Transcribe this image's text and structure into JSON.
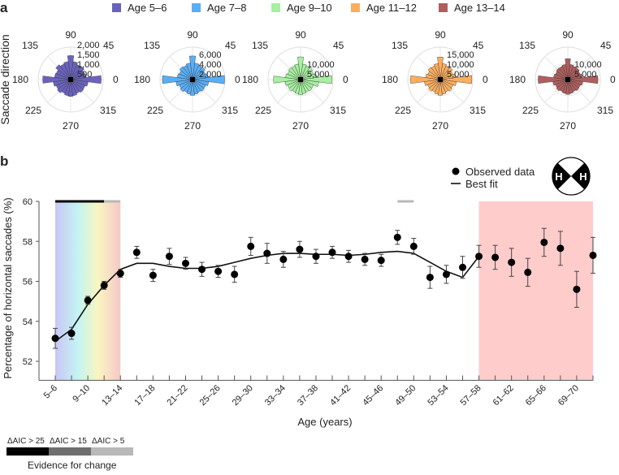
{
  "panel_a": {
    "letter": "a",
    "ylabel": "Saccade direction",
    "angle_labels": [
      "0",
      "45",
      "90",
      "135",
      "180",
      "225",
      "270",
      "315"
    ],
    "bin_width_deg": 15,
    "legend": [
      {
        "label": "Age 5–6",
        "color": "#6a63bd"
      },
      {
        "label": "Age 7–8",
        "color": "#5aaef6"
      },
      {
        "label": "Age 9–10",
        "color": "#a6f0a0"
      },
      {
        "label": "Age 11–12",
        "color": "#fcae60"
      },
      {
        "label": "Age 13–14",
        "color": "#b05e5e"
      }
    ],
    "chart_data": [
      {
        "type": "polar-bar",
        "group": "Age 5–6",
        "rmax": 2500,
        "radial_ticks": [
          "500",
          "1,000",
          "1,500",
          "2,000"
        ],
        "radial_tick_values": [
          500,
          1000,
          1500,
          2000
        ],
        "counts": [
          2350,
          1200,
          1150,
          1300,
          1250,
          1400,
          1850,
          1400,
          1300,
          1450,
          1200,
          1250,
          2150,
          1350,
          1200,
          1300,
          1150,
          1250,
          1300,
          1250,
          1150,
          1250,
          1200,
          1350
        ]
      },
      {
        "type": "polar-bar",
        "group": "Age 7–8",
        "rmax": 7000,
        "radial_ticks": [
          "2,000",
          "4,000",
          "6,000"
        ],
        "radial_tick_values": [
          2000,
          4000,
          6000
        ],
        "counts": [
          6900,
          3300,
          3000,
          3400,
          3300,
          3600,
          5100,
          3600,
          3300,
          3500,
          3100,
          3300,
          6500,
          3600,
          3100,
          3300,
          3000,
          3200,
          3400,
          3200,
          3000,
          3200,
          3100,
          3500
        ]
      },
      {
        "type": "polar-bar",
        "group": "Age 9–10",
        "rmax": 15000,
        "radial_ticks": [
          "5,000",
          "10,000"
        ],
        "radial_tick_values": [
          5000,
          10000
        ],
        "counts": [
          14500,
          7500,
          6500,
          7000,
          6800,
          7200,
          10500,
          7200,
          6800,
          7000,
          6500,
          7000,
          12500,
          7200,
          6500,
          6800,
          6300,
          6700,
          7000,
          6700,
          6300,
          6700,
          6500,
          8500
        ]
      },
      {
        "type": "polar-bar",
        "group": "Age 11–12",
        "rmax": 18000,
        "radial_ticks": [
          "5,000",
          "10,000",
          "15,000"
        ],
        "radial_tick_values": [
          5000,
          10000,
          15000
        ],
        "counts": [
          17500,
          8500,
          7500,
          8500,
          8200,
          9000,
          12500,
          9000,
          8200,
          8500,
          7500,
          8200,
          16500,
          8800,
          7600,
          8200,
          7500,
          8200,
          8700,
          8200,
          7500,
          8200,
          7700,
          9000
        ]
      },
      {
        "type": "polar-bar",
        "group": "Age 13–14",
        "rmax": 14000,
        "radial_ticks": [
          "5,000",
          "10,000"
        ],
        "radial_tick_values": [
          5000,
          10000
        ],
        "counts": [
          13000,
          6300,
          5800,
          6300,
          6200,
          6600,
          9000,
          6600,
          6200,
          6300,
          5800,
          6200,
          12800,
          6500,
          5800,
          6200,
          5700,
          6100,
          6400,
          6100,
          5700,
          6100,
          5900,
          6500
        ]
      }
    ]
  },
  "panel_b": {
    "letter": "b",
    "legend": {
      "observed": "Observed data",
      "fit": "Best fit"
    },
    "icon_letter": "H",
    "evidence_legend": {
      "labels": [
        "ΔAIC > 25",
        "ΔAIC > 15",
        "ΔAIC > 5"
      ],
      "colors": [
        "#000000",
        "#6e6e6e",
        "#b8b8b8"
      ],
      "title": "Evidence for change"
    },
    "chart_data": {
      "type": "line",
      "title": "",
      "xlabel": "Age (years)",
      "ylabel": "Percentage of horizontal saccades (%)",
      "ylim": [
        51.05,
        60
      ],
      "yticks": [
        52,
        54,
        56,
        58,
        60
      ],
      "categories": [
        "5–6",
        "7–8",
        "9–10",
        "11–12",
        "13–14",
        "15–16",
        "17–18",
        "19–20",
        "21–22",
        "23–24",
        "25–26",
        "27–28",
        "29–30",
        "31–32",
        "33–34",
        "35–36",
        "37–38",
        "39–40",
        "41–42",
        "43–44",
        "45–46",
        "47–48",
        "49–50",
        "51–52",
        "53–54",
        "55–56",
        "57–58",
        "59–60",
        "61–62",
        "63–64",
        "65–66",
        "67–68",
        "69–70",
        "71–72"
      ],
      "tick_labels": [
        "5–6",
        "9–10",
        "13–14",
        "17–18",
        "21–22",
        "25–26",
        "29–30",
        "33–34",
        "37–38",
        "41–42",
        "45–46",
        "49–50",
        "53–54",
        "57–58",
        "61–62",
        "65–66",
        "69–70"
      ],
      "observed": [
        53.15,
        53.4,
        55.05,
        55.8,
        56.4,
        57.45,
        56.3,
        57.25,
        56.9,
        56.6,
        56.5,
        56.35,
        57.75,
        57.4,
        57.1,
        57.6,
        57.25,
        57.45,
        57.25,
        57.1,
        57.05,
        58.2,
        57.75,
        56.2,
        56.35,
        56.7,
        57.25,
        57.2,
        56.95,
        56.45,
        57.95,
        57.65,
        55.6,
        57.3
      ],
      "error": [
        0.5,
        0.3,
        0.2,
        0.2,
        0.2,
        0.3,
        0.3,
        0.4,
        0.3,
        0.35,
        0.3,
        0.4,
        0.45,
        0.5,
        0.4,
        0.4,
        0.35,
        0.3,
        0.3,
        0.3,
        0.3,
        0.35,
        0.4,
        0.55,
        0.45,
        0.55,
        0.55,
        0.6,
        0.7,
        0.7,
        0.7,
        0.85,
        0.9,
        0.9
      ],
      "best_fit": [
        53.0,
        53.6,
        54.85,
        55.8,
        56.6,
        56.9,
        56.9,
        56.75,
        56.65,
        56.65,
        56.75,
        56.95,
        57.15,
        57.3,
        57.4,
        57.4,
        57.35,
        57.35,
        57.3,
        57.35,
        57.45,
        57.5,
        57.4,
        56.95,
        56.5,
        56.2,
        57.25
      ],
      "shaded_regions": [
        {
          "from": "5–6",
          "to": "13–14",
          "style": "rainbow"
        },
        {
          "from": "57–58",
          "to": "71–72",
          "style": "pink",
          "color": "#ffcccc"
        }
      ],
      "evidence_bars": [
        {
          "from": "5–6",
          "to": "11–12",
          "level": "ΔAIC > 25"
        },
        {
          "from": "11–12",
          "to": "13–14",
          "level": "ΔAIC > 5"
        },
        {
          "from": "47–48",
          "to": "49–50",
          "level": "ΔAIC > 5"
        }
      ]
    }
  }
}
